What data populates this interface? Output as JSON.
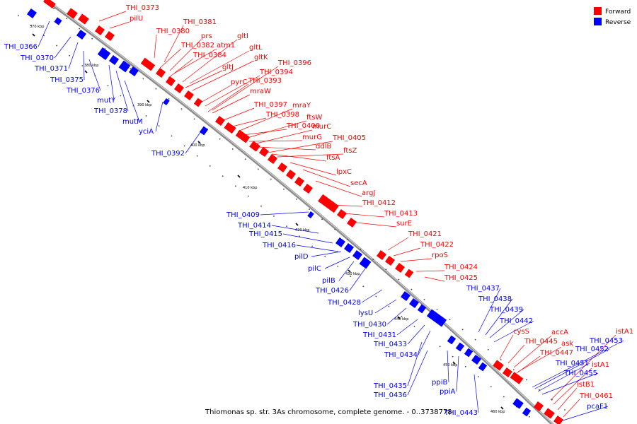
{
  "title": "Thiomonas sp. str. 3As chromosome, complete genome. - 0..3738778",
  "legend": [
    {
      "label": "Forward",
      "color": "#ff0000"
    },
    {
      "label": "Reverse",
      "color": "#0000ff"
    }
  ],
  "colors": {
    "forward": "#ff0000",
    "reverse": "#0000ff",
    "backbone": "#a0a0a0"
  },
  "scale_labels": [
    "370 kbp",
    "380 kbp",
    "390 kbp",
    "400 kbp",
    "410 kbp",
    "420 kbp",
    "430 kbp",
    "440 kbp",
    "450 kbp",
    "460 kbp"
  ],
  "forward_labels": [
    "THI_0373",
    "pilU",
    "THI_0381",
    "THI_0380",
    "prs",
    "THI_0382",
    "atm1",
    "gltI",
    "gltL",
    "THI_0384",
    "gltK",
    "gltJ",
    "THI_0396",
    "THI_0394",
    "pyrC",
    "THI_0393",
    "mraW",
    "THI_0397",
    "mraY",
    "THI_0398",
    "ftsW",
    "THI_0400",
    "murC",
    "murG",
    "THI_0405",
    "ddlB",
    "ftsZ",
    "ftsA",
    "lpxC",
    "secA",
    "argJ",
    "THI_0412",
    "THI_0413",
    "surE",
    "THI_0421",
    "THI_0422",
    "rpoS",
    "THI_0424",
    "THI_0425",
    "cysS",
    "accA",
    "THI_0445",
    "ask",
    "THI_0447",
    "istA1",
    "istA1",
    "istB1",
    "THI_0461"
  ],
  "reverse_labels": [
    "THI_0366",
    "THI_0370",
    "THI_0371",
    "THI_0375",
    "THI_0376",
    "mutY",
    "THI_0378",
    "mutM",
    "yciA",
    "THI_0392",
    "THI_0409",
    "THI_0414",
    "THI_0415",
    "THI_0416",
    "pilD",
    "pilC",
    "pilB",
    "THI_0426",
    "THI_0428",
    "lysU",
    "THI_0430",
    "THI_0431",
    "THI_0433",
    "THI_0434",
    "THI_0435",
    "THI_0436",
    "ppiB",
    "ppiA",
    "THI_0443",
    "THI_0437",
    "THI_0438",
    "THI_0439",
    "THI_0442",
    "THI_0453",
    "THI_0452",
    "THI_0451",
    "THI_0455",
    "pcaF1"
  ]
}
